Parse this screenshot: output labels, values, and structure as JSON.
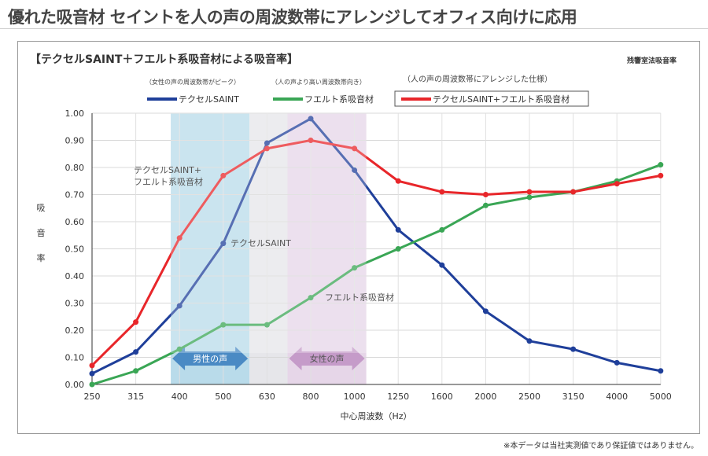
{
  "page": {
    "title": "優れた吸音材 セイントを人の声の周波数帯にアレンジしてオフィス向けに応用",
    "footnote": "※本データは当社実測値であり保証値ではありません。"
  },
  "chart_data": {
    "type": "line",
    "title": "【テクセルSAINT＋フエルト系吸音材による吸音率】",
    "method": "残響室法吸音率",
    "xlabel": "中心周波数（Hz）",
    "ylabel": "吸音率",
    "ylabel_chars": [
      "吸",
      "音",
      "率"
    ],
    "ylim": [
      0,
      1
    ],
    "yticks": [
      "0.00",
      "0.10",
      "0.20",
      "0.30",
      "0.40",
      "0.50",
      "0.60",
      "0.70",
      "0.80",
      "0.90",
      "1.00"
    ],
    "categories": [
      "250",
      "315",
      "400",
      "500",
      "630",
      "800",
      "1000",
      "1250",
      "1600",
      "2000",
      "2500",
      "3150",
      "4000",
      "5000"
    ],
    "grid": true,
    "legend_position": "top",
    "series": [
      {
        "name": "テクセルSAINT",
        "note": "（女性の声の周波数帯がピーク）",
        "color": "#1f3f9a",
        "inline_label": "テクセルSAINT",
        "values": [
          0.04,
          0.12,
          0.29,
          0.52,
          0.89,
          0.98,
          0.79,
          0.57,
          0.44,
          0.27,
          0.16,
          0.13,
          0.08,
          0.05
        ]
      },
      {
        "name": "フエルト系吸音材",
        "note": "（人の声より高い周波数帯向き）",
        "color": "#3aa655",
        "inline_label": "フエルト系吸音材",
        "values": [
          0.0,
          0.05,
          0.13,
          0.22,
          0.22,
          0.32,
          0.43,
          0.5,
          0.57,
          0.66,
          0.69,
          0.71,
          0.75,
          0.81
        ]
      },
      {
        "name": "テクセルSAINT+フエルト系吸音材",
        "note": "（人の声の周波数帯にアレンジした仕様）",
        "color": "#e8262a",
        "inline_label": "テクセルSAINT+ フエルト系吸音材",
        "values": [
          0.07,
          0.23,
          0.54,
          0.77,
          0.87,
          0.9,
          0.87,
          0.75,
          0.71,
          0.7,
          0.71,
          0.71,
          0.74,
          0.77
        ]
      }
    ],
    "bands": [
      {
        "label": "男性の声",
        "from_index": 1.8,
        "to_index": 3.6,
        "color": "#b9dbea",
        "arrow_color": "#4a8ac4"
      },
      {
        "label": "",
        "from_index": 3.6,
        "to_index": 4.47,
        "color": "#e6e6ea"
      },
      {
        "label": "女性の声",
        "from_index": 4.47,
        "to_index": 6.27,
        "color": "#e6d6e8",
        "arrow_color": "#c59bc9"
      }
    ]
  }
}
